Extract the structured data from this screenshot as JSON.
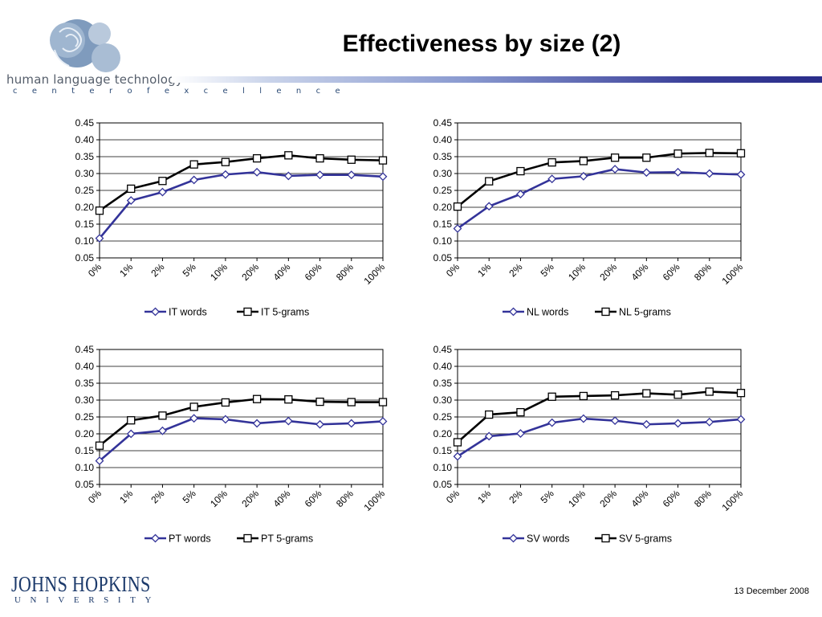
{
  "header": {
    "title": "Effectiveness by size (2)",
    "logo_text": "human language technology",
    "logo_subtext": "c e n t e r   o f   e x c e l l e n c e"
  },
  "footer": {
    "university_name": "JOHNS HOPKINS",
    "university_sub": "UNIVERSITY",
    "date": "13 December 2008"
  },
  "colors": {
    "words_series": "#333399",
    "grams_series": "#000000",
    "title_rule_end": "#2a2d8a"
  },
  "chart_data": [
    {
      "type": "line",
      "categories": [
        "0%",
        "1%",
        "2%",
        "5%",
        "10%",
        "20%",
        "40%",
        "60%",
        "80%",
        "100%"
      ],
      "ylim": [
        0.05,
        0.45
      ],
      "yticks": [
        "0.05",
        "0.10",
        "0.15",
        "0.20",
        "0.25",
        "0.30",
        "0.35",
        "0.40",
        "0.45"
      ],
      "grid": true,
      "legend_position": "bottom",
      "series": [
        {
          "name": "IT words",
          "values": [
            0.108,
            0.22,
            0.245,
            0.281,
            0.297,
            0.304,
            0.293,
            0.296,
            0.296,
            0.291
          ]
        },
        {
          "name": "IT 5-grams",
          "values": [
            0.19,
            0.255,
            0.278,
            0.327,
            0.334,
            0.345,
            0.354,
            0.345,
            0.341,
            0.339
          ]
        }
      ]
    },
    {
      "type": "line",
      "categories": [
        "0%",
        "1%",
        "2%",
        "5%",
        "10%",
        "20%",
        "40%",
        "60%",
        "80%",
        "100%"
      ],
      "ylim": [
        0.05,
        0.45
      ],
      "yticks": [
        "0.05",
        "0.10",
        "0.15",
        "0.20",
        "0.25",
        "0.30",
        "0.35",
        "0.40",
        "0.45"
      ],
      "grid": true,
      "legend_position": "bottom",
      "series": [
        {
          "name": "NL words",
          "values": [
            0.137,
            0.203,
            0.239,
            0.284,
            0.292,
            0.313,
            0.303,
            0.304,
            0.3,
            0.297
          ]
        },
        {
          "name": "NL 5-grams",
          "values": [
            0.202,
            0.277,
            0.307,
            0.333,
            0.337,
            0.347,
            0.347,
            0.359,
            0.361,
            0.36
          ]
        }
      ]
    },
    {
      "type": "line",
      "categories": [
        "0%",
        "1%",
        "2%",
        "5%",
        "10%",
        "20%",
        "40%",
        "60%",
        "80%",
        "100%"
      ],
      "ylim": [
        0.05,
        0.45
      ],
      "yticks": [
        "0.05",
        "0.10",
        "0.15",
        "0.20",
        "0.25",
        "0.30",
        "0.35",
        "0.40",
        "0.45"
      ],
      "grid": true,
      "legend_position": "bottom",
      "series": [
        {
          "name": "PT words",
          "values": [
            0.12,
            0.2,
            0.209,
            0.246,
            0.243,
            0.231,
            0.238,
            0.228,
            0.231,
            0.237
          ]
        },
        {
          "name": "PT 5-grams",
          "values": [
            0.165,
            0.24,
            0.254,
            0.28,
            0.293,
            0.303,
            0.302,
            0.295,
            0.294,
            0.294
          ]
        }
      ]
    },
    {
      "type": "line",
      "categories": [
        "0%",
        "1%",
        "2%",
        "5%",
        "10%",
        "20%",
        "40%",
        "60%",
        "80%",
        "100%"
      ],
      "ylim": [
        0.05,
        0.45
      ],
      "yticks": [
        "0.05",
        "0.10",
        "0.15",
        "0.20",
        "0.25",
        "0.30",
        "0.35",
        "0.40",
        "0.45"
      ],
      "grid": true,
      "legend_position": "bottom",
      "series": [
        {
          "name": "SV words",
          "values": [
            0.133,
            0.193,
            0.201,
            0.233,
            0.245,
            0.239,
            0.228,
            0.231,
            0.235,
            0.243
          ]
        },
        {
          "name": "SV 5-grams",
          "values": [
            0.175,
            0.257,
            0.264,
            0.31,
            0.312,
            0.314,
            0.32,
            0.316,
            0.325,
            0.321
          ]
        }
      ]
    }
  ]
}
